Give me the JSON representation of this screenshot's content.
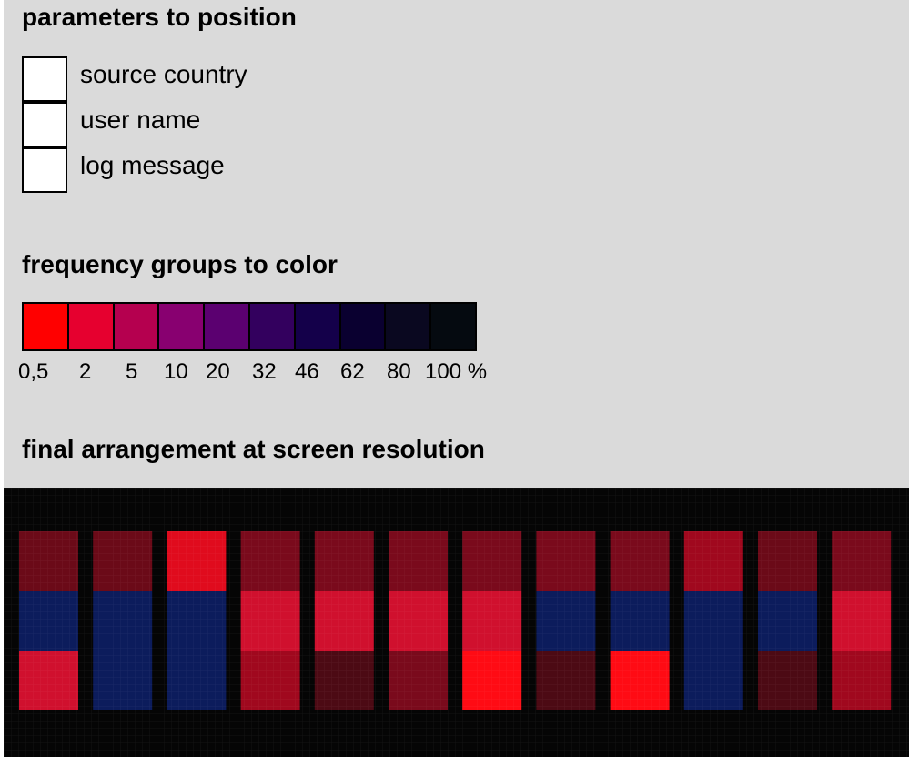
{
  "sections": {
    "parameters_title": "parameters to position",
    "frequency_title": "frequency groups to color",
    "final_title": "final arrangement at screen resolution"
  },
  "parameters": [
    {
      "label": "source country"
    },
    {
      "label": "user name"
    },
    {
      "label": "log message"
    }
  ],
  "frequency_legend": {
    "colors": [
      "#ff0000",
      "#e6002f",
      "#b5004f",
      "#880070",
      "#5b0070",
      "#33005e",
      "#14004a",
      "#0a0030",
      "#0a0820",
      "#050a10"
    ],
    "ticks": [
      "0,5",
      "2",
      "5",
      "10",
      "20",
      "32",
      "46",
      "62",
      "80",
      "100 %"
    ]
  },
  "arrangement": {
    "colors": {
      "dark_red": "#6b0a18",
      "maroon": "#7a0a1c",
      "red": "#cc0a24",
      "bright_red": "#e00b1d",
      "pure_red": "#ff0b14",
      "crimson": "#d0102e",
      "deep_maroon": "#4c0a14",
      "medium_red": "#a0081e",
      "blue": "#0c1c5c"
    },
    "columns": [
      [
        "dark_red",
        "blue",
        "crimson"
      ],
      [
        "dark_red",
        "blue",
        "blue"
      ],
      [
        "bright_red",
        "blue",
        "blue"
      ],
      [
        "maroon",
        "crimson",
        "medium_red"
      ],
      [
        "maroon",
        "crimson",
        "deep_maroon"
      ],
      [
        "maroon",
        "crimson",
        "maroon"
      ],
      [
        "maroon",
        "crimson",
        "pure_red"
      ],
      [
        "maroon",
        "blue",
        "deep_maroon"
      ],
      [
        "maroon",
        "blue",
        "pure_red"
      ],
      [
        "medium_red",
        "blue",
        "blue"
      ],
      [
        "dark_red",
        "blue",
        "deep_maroon"
      ],
      [
        "maroon",
        "crimson",
        "medium_red"
      ]
    ]
  }
}
